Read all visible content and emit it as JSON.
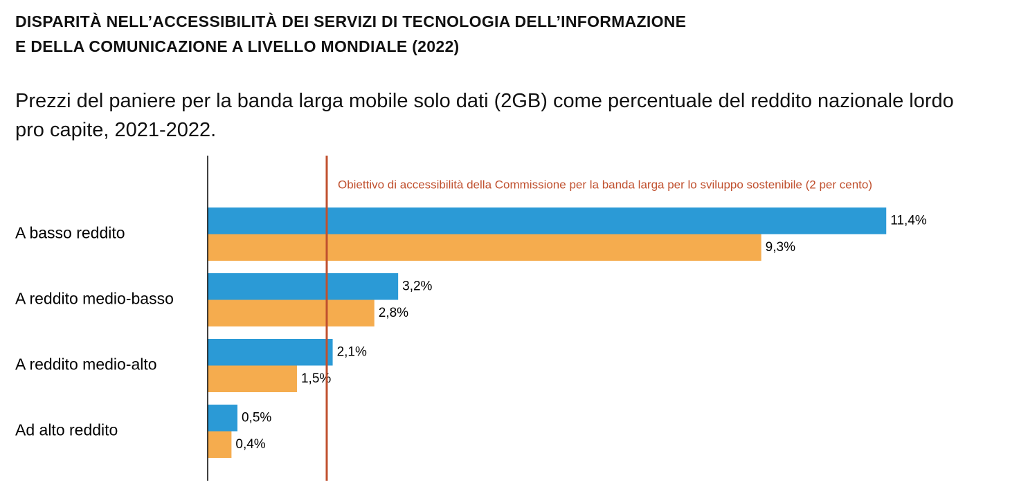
{
  "chart_data": {
    "type": "hbar",
    "title": [
      "DISPARITÀ NELL’ACCESSIBILITÀ DEI SERVIZI DI TECNOLOGIA DELL’INFORMAZIONE",
      "E DELLA COMUNICAZIONE A LIVELLO MONDIALE (2022)"
    ],
    "subtitle": [
      "Prezzi del paniere per la banda larga mobile solo dati (2GB) come percentuale del reddito nazionale lordo",
      "pro capite, 2021-2022."
    ],
    "categories": [
      "A basso reddito",
      "A reddito medio-basso",
      "A reddito medio-alto",
      "Ad alto reddito"
    ],
    "series": [
      {
        "color": "#2b9ad6",
        "values": [
          11.4,
          3.2,
          2.1,
          0.5
        ],
        "value_labels": [
          "11,4%",
          "3,2%",
          "2,1%",
          "0,5%"
        ]
      },
      {
        "color": "#f5ac4e",
        "values": [
          9.3,
          2.8,
          1.5,
          0.4
        ],
        "value_labels": [
          "9,3%",
          "2,8%",
          "1,5%",
          "0,4%"
        ]
      }
    ],
    "xlim": [
      0,
      13.7
    ],
    "reference_line": {
      "value": 2,
      "label": "Obiettivo di accessibilità della Commissione per la banda larga per lo sviluppo sostenibile (2 per cento)",
      "color": "#c0502e"
    }
  }
}
